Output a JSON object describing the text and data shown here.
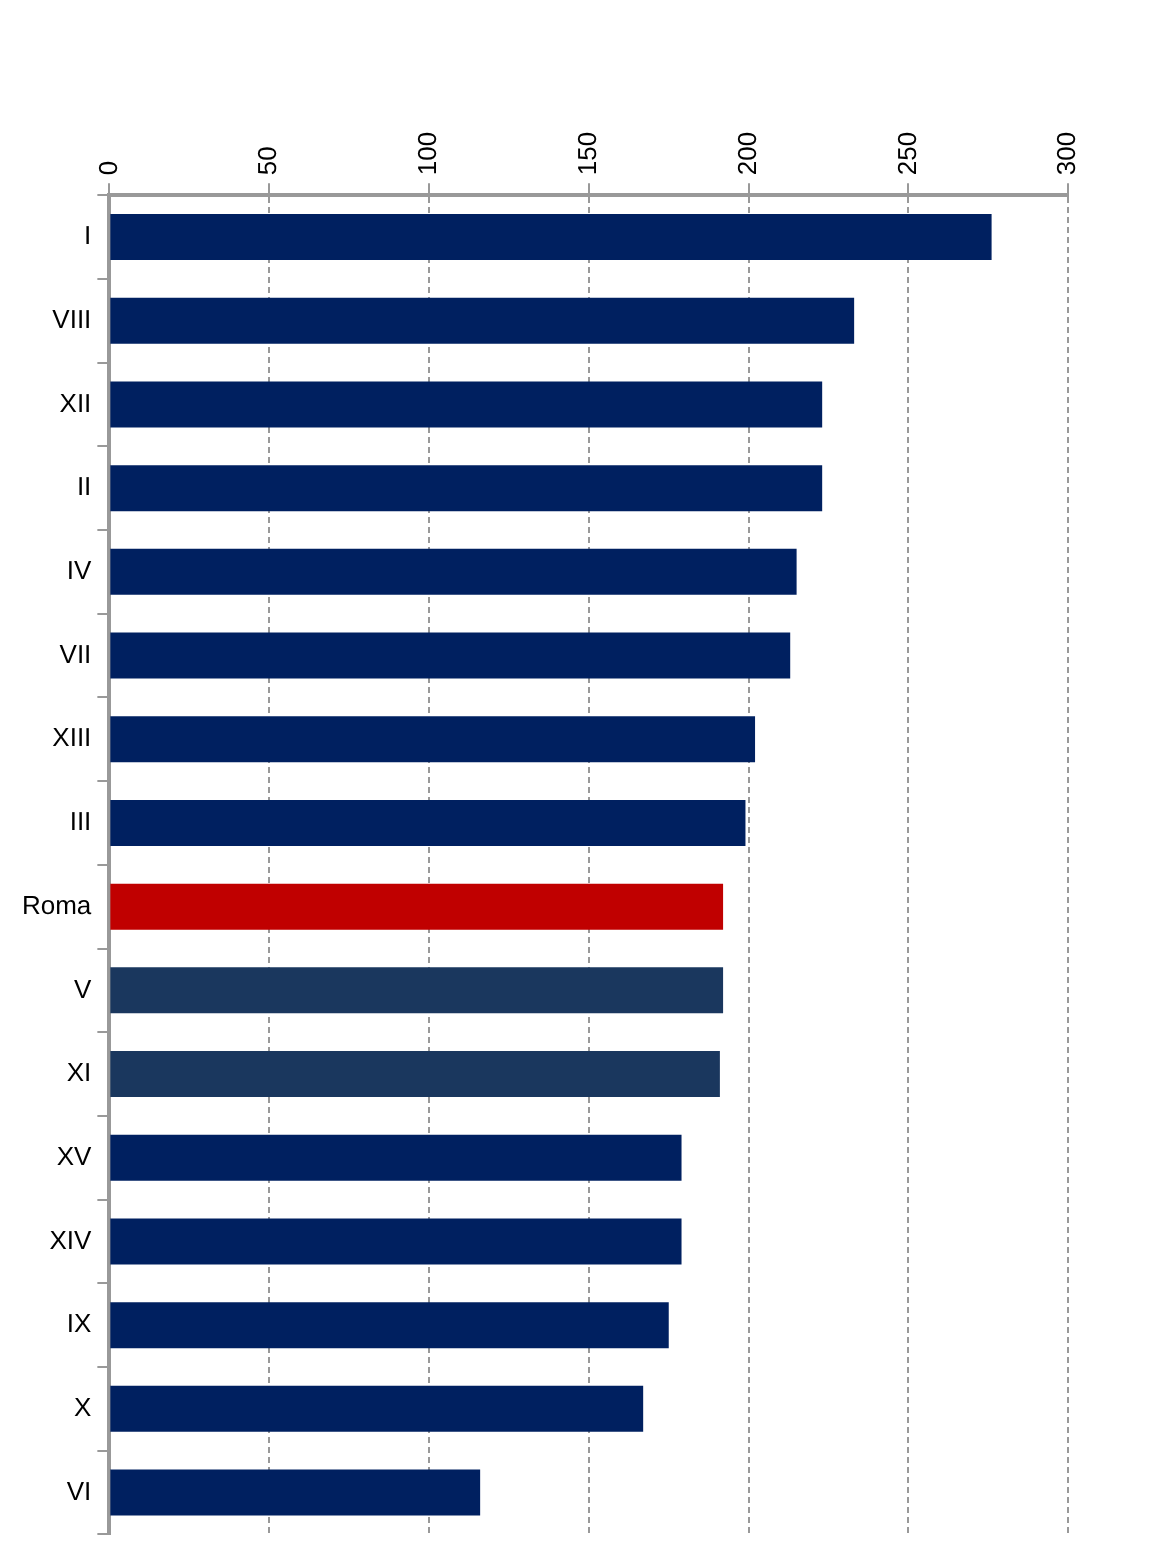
{
  "chart_data": {
    "type": "bar",
    "orientation": "horizontal",
    "categories": [
      "I",
      "VIII",
      "XII",
      "II",
      "IV",
      "VII",
      "XIII",
      "III",
      "Roma",
      "V",
      "XI",
      "XV",
      "XIV",
      "IX",
      "X",
      "VI"
    ],
    "values": [
      276,
      233,
      223,
      223,
      215,
      213,
      202,
      199,
      192,
      192,
      191,
      179,
      179,
      175,
      167,
      116
    ],
    "colors": [
      "#002060",
      "#002060",
      "#002060",
      "#002060",
      "#002060",
      "#002060",
      "#002060",
      "#002060",
      "#c00000",
      "#1a375e",
      "#1a375e",
      "#002060",
      "#002060",
      "#002060",
      "#002060",
      "#002060"
    ],
    "xlim": [
      0,
      300
    ],
    "xticks": [
      0,
      50,
      100,
      150,
      200,
      250,
      300
    ],
    "grid": "x",
    "legend": false
  }
}
